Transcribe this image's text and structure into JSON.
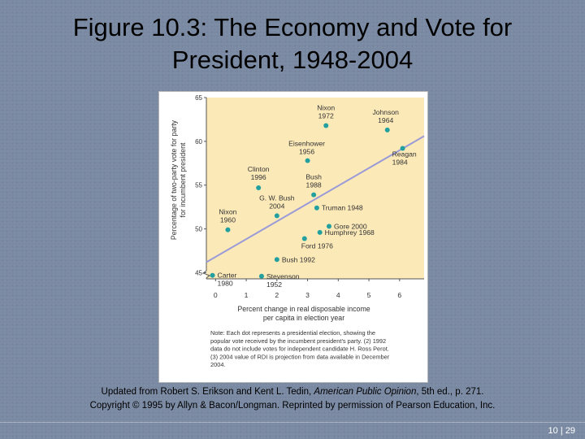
{
  "slide": {
    "title_line1": "Figure 10.3: The Economy and Vote for",
    "title_line2": "President, 1948-2004",
    "credit_line1_prefix": "Updated from Robert S. Erikson and Kent L. Tedin, ",
    "credit_line1_italic": "American Public Opinion",
    "credit_line1_suffix": ", 5th ed., p. 271.",
    "credit_line2": "Copyright © 1995 by Allyn & Bacon/Longman. Reprinted by permission of Pearson Education, Inc.",
    "page_number": "10 | 29"
  },
  "colors": {
    "plot_background": "#fbe9b8",
    "point": "#22a0a0",
    "trend_line": "#9a9ad8"
  },
  "chart_data": {
    "type": "scatter",
    "xlabel": [
      "Percent change in real disposable income",
      "per capita in election year"
    ],
    "ylabel": [
      "Percentage of two-party vote for party",
      "for incumbent president"
    ],
    "xlim": [
      -0.3,
      6.8
    ],
    "ylim": [
      44.3,
      65
    ],
    "x_ticks": [
      0,
      1,
      2,
      3,
      4,
      5,
      6
    ],
    "y_ticks": [
      45,
      50,
      55,
      60,
      65
    ],
    "points": [
      {
        "label": [
          "Nixon",
          "1972"
        ],
        "x": 3.6,
        "y": 61.8
      },
      {
        "label": [
          "Johnson",
          "1964"
        ],
        "x": 5.6,
        "y": 61.3
      },
      {
        "label": [
          "Reagan",
          "1984"
        ],
        "x": 6.1,
        "y": 59.2
      },
      {
        "label": [
          "Eisenhower",
          "1956"
        ],
        "x": 3.0,
        "y": 57.8
      },
      {
        "label": [
          "Clinton",
          "1996"
        ],
        "x": 1.4,
        "y": 54.7
      },
      {
        "label": [
          "Bush",
          "1988"
        ],
        "x": 3.2,
        "y": 53.9
      },
      {
        "label": [
          "G. W. Bush",
          "2004"
        ],
        "x": 2.0,
        "y": 51.5
      },
      {
        "label": [
          "Truman 1948"
        ],
        "x": 3.3,
        "y": 52.4
      },
      {
        "label": [
          "Nixon",
          "1960"
        ],
        "x": 0.4,
        "y": 49.9
      },
      {
        "label": [
          "Gore 2000"
        ],
        "x": 3.7,
        "y": 50.3
      },
      {
        "label": [
          "Humphrey 1968"
        ],
        "x": 3.4,
        "y": 49.6
      },
      {
        "label": [
          "Ford 1976"
        ],
        "x": 2.9,
        "y": 48.9
      },
      {
        "label": [
          "Bush 1992"
        ],
        "x": 2.0,
        "y": 46.5
      },
      {
        "label": [
          "Carter",
          "1980"
        ],
        "x": -0.1,
        "y": 44.7
      },
      {
        "label": [
          "Stevenson",
          "1952"
        ],
        "x": 1.5,
        "y": 44.6
      }
    ],
    "trend_line": {
      "x": [
        -0.3,
        6.8
      ],
      "y": [
        46.2,
        60.6
      ]
    },
    "note": [
      "Note:  Each dot represents a presidential election, showing the",
      "popular vote received by the incumbent president's party. (2) 1992",
      "data do not include votes for independent candidate H. Ross Perot.",
      "(3) 2004 value of RDI is projection from data available in December",
      "2004."
    ]
  }
}
